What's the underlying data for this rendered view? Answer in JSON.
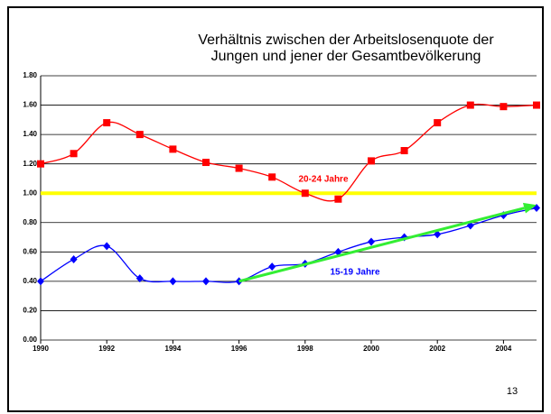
{
  "chart_data": {
    "type": "line",
    "title": [
      "Verhältnis zwischen der Arbeitslosenquote der",
      "Jungen und jener der Gesamtbevölkerung"
    ],
    "x": [
      1990,
      1991,
      1992,
      1993,
      1994,
      1995,
      1996,
      1997,
      1998,
      1999,
      2000,
      2001,
      2002,
      2003,
      2004,
      2005
    ],
    "series": [
      {
        "name": "20-24 Jahre",
        "color": "#ff0000",
        "marker": "square",
        "values": [
          1.2,
          1.27,
          1.48,
          1.4,
          1.3,
          1.21,
          1.17,
          1.11,
          1.0,
          0.96,
          1.22,
          1.29,
          1.48,
          1.6,
          1.59,
          1.6
        ]
      },
      {
        "name": "15-19 Jahre",
        "color": "#0000ff",
        "marker": "diamond",
        "values": [
          0.4,
          0.55,
          0.64,
          0.42,
          0.4,
          0.4,
          0.4,
          0.5,
          0.52,
          0.6,
          0.67,
          0.7,
          0.72,
          0.78,
          0.85,
          0.9
        ]
      }
    ],
    "reference_line": {
      "value": 1.0,
      "color": "#ffff00"
    },
    "trend_arrow": {
      "x": [
        1996,
        2005
      ],
      "values": [
        0.4,
        0.92
      ],
      "color": "#33ee33"
    },
    "xlim": [
      1990,
      2005
    ],
    "xticks": [
      1990,
      1992,
      1994,
      1996,
      1998,
      2000,
      2002,
      2004
    ],
    "ylim": [
      0,
      1.8
    ],
    "yticks": [
      {
        "value": 0,
        "label": "0.00"
      },
      {
        "value": 0.2,
        "label": "0.20"
      },
      {
        "value": 0.4,
        "label": "0.40"
      },
      {
        "value": 0.6,
        "label": "0.60"
      },
      {
        "value": 0.8,
        "label": "0.80"
      },
      {
        "value": 1.0,
        "label": "1.00"
      },
      {
        "value": 1.2,
        "label": "1.20"
      },
      {
        "value": 1.4,
        "label": "1.40"
      },
      {
        "value": 1.6,
        "label": "1.60"
      },
      {
        "value": 1.8,
        "label": "1.80"
      }
    ],
    "grid": true,
    "page_number": "13"
  }
}
